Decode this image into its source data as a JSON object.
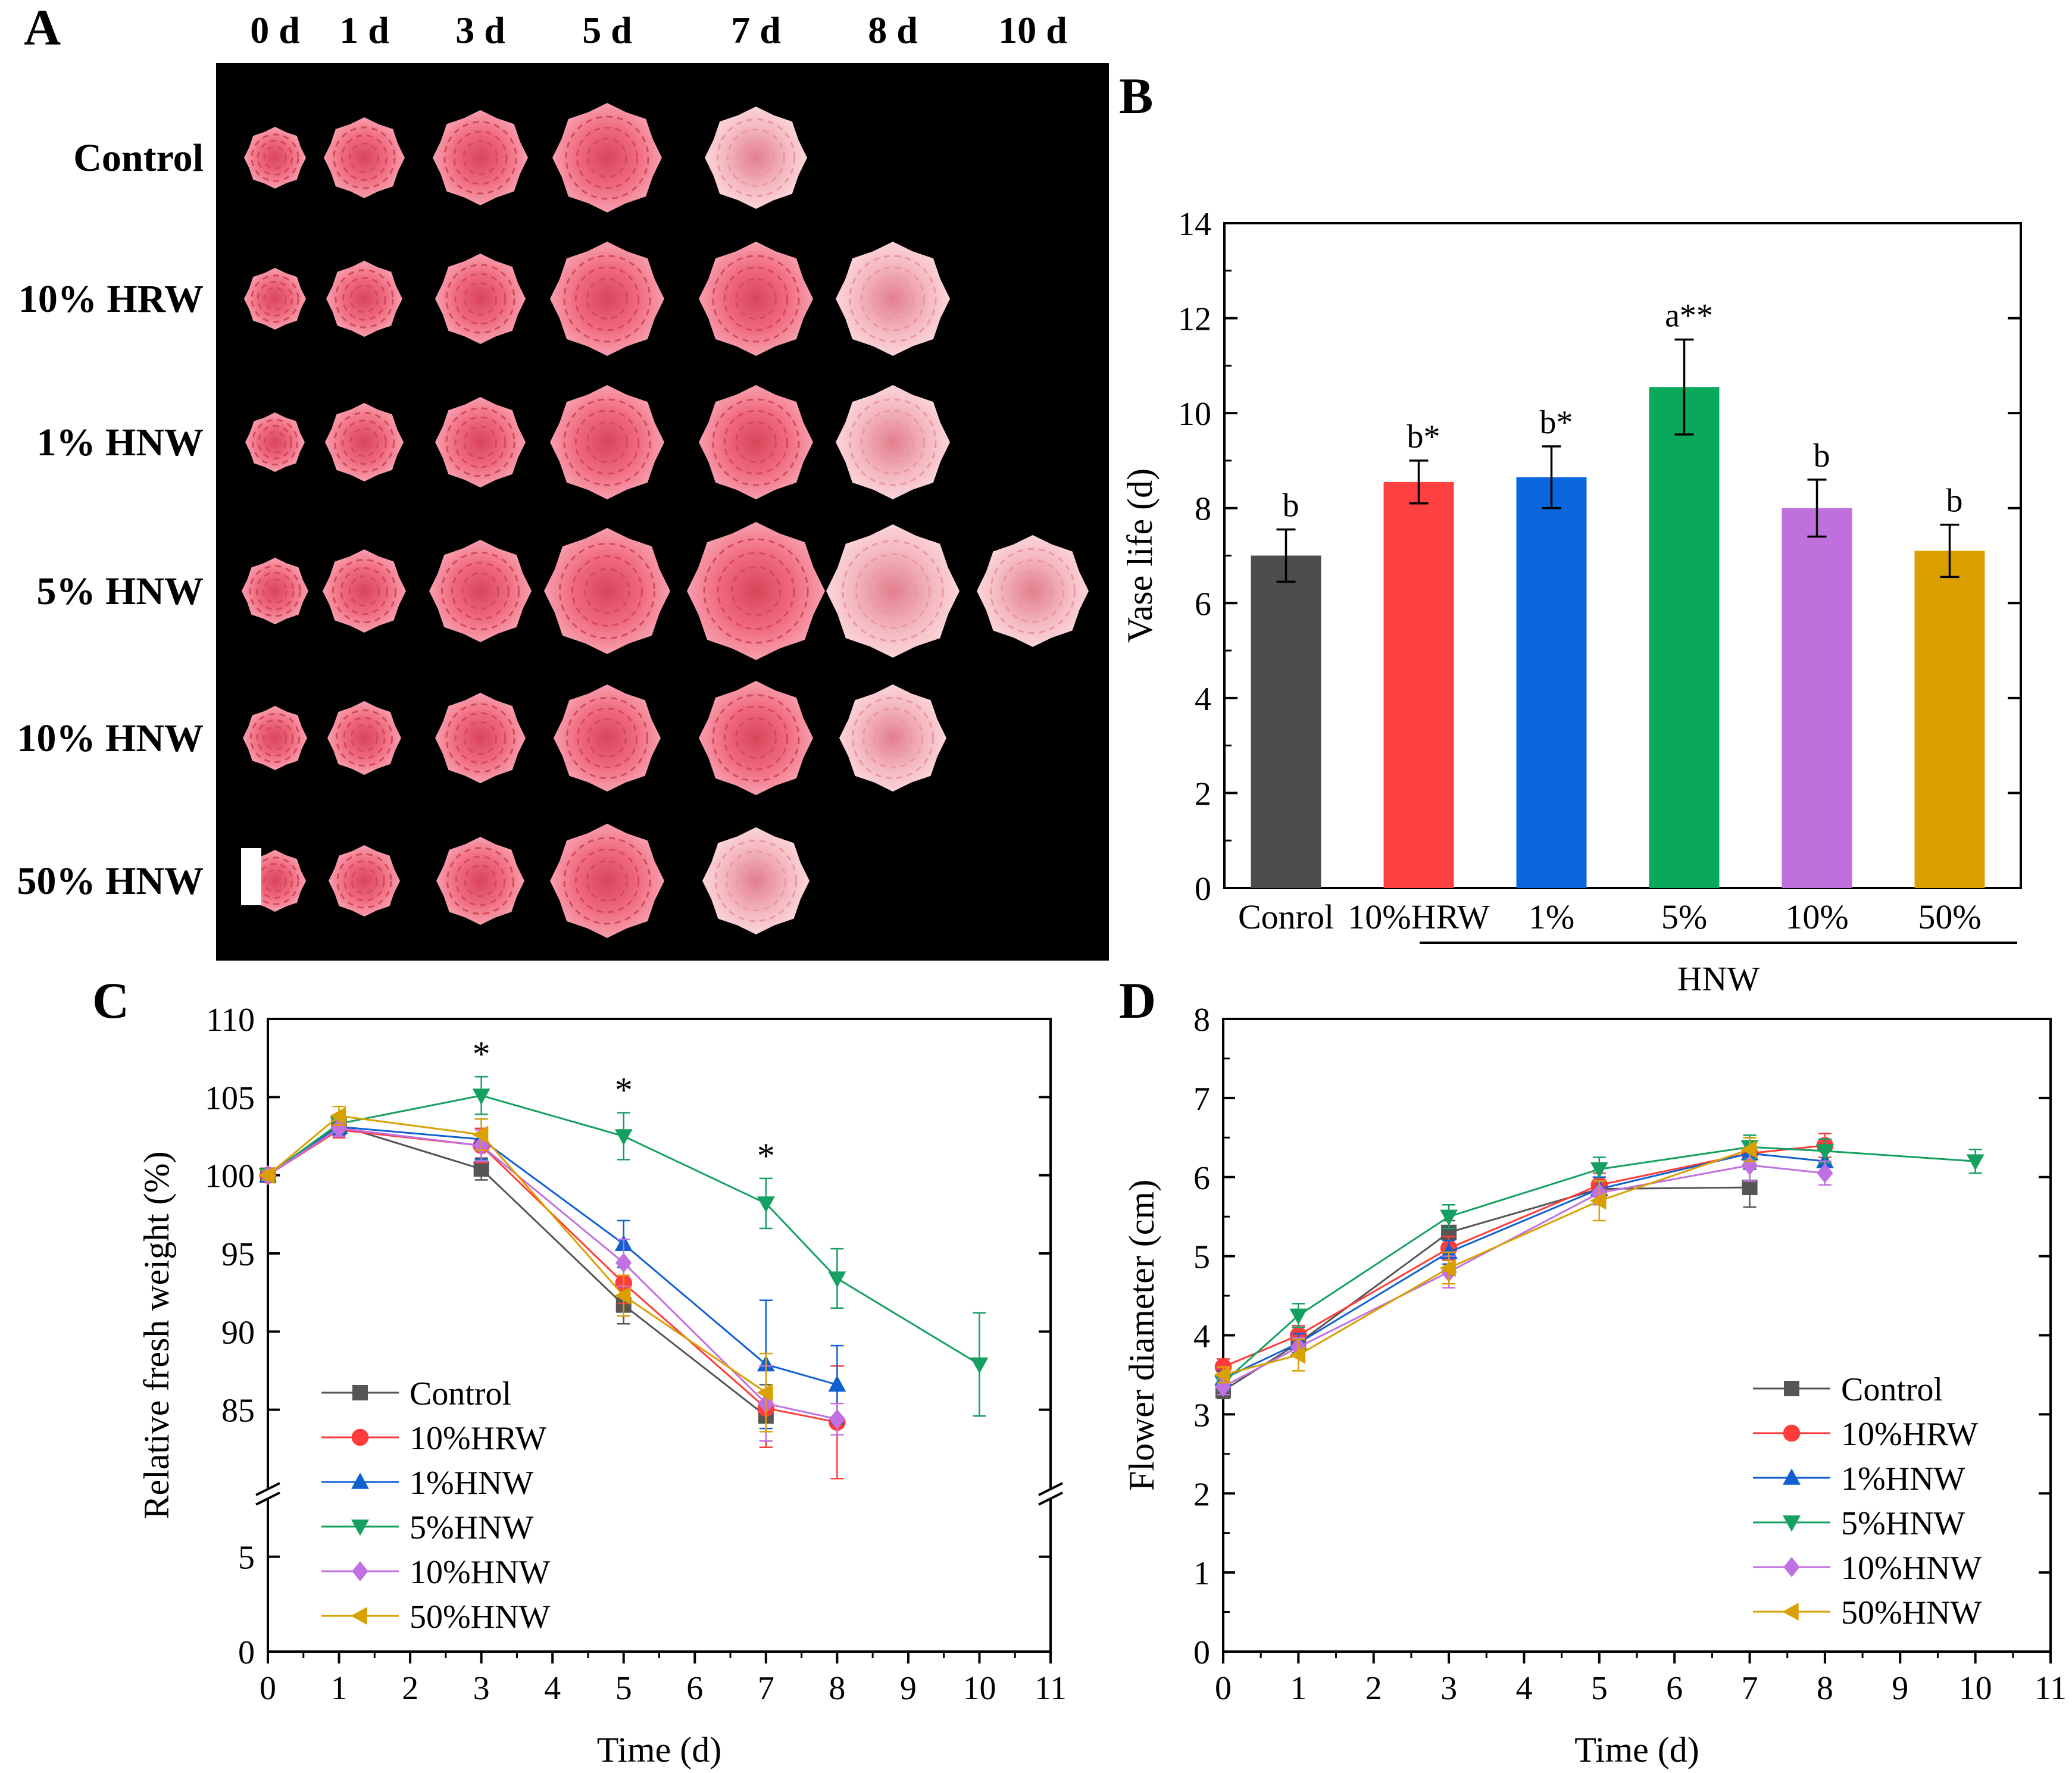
{
  "panels": {
    "a": {
      "label": "A",
      "days": [
        "0 d",
        "1 d",
        "3 d",
        "5 d",
        "7 d",
        "8 d",
        "10 d"
      ],
      "rows": [
        {
          "label": "Control",
          "photos": [
            1,
            1,
            1,
            1,
            1,
            0,
            0
          ]
        },
        {
          "label": "10% HRW",
          "photos": [
            1,
            1,
            1,
            1,
            1,
            1,
            0
          ]
        },
        {
          "label": "1% HNW",
          "photos": [
            1,
            1,
            1,
            1,
            1,
            1,
            0
          ]
        },
        {
          "label": "5% HNW",
          "photos": [
            1,
            1,
            1,
            1,
            1,
            1,
            1
          ]
        },
        {
          "label": "10% HNW",
          "photos": [
            1,
            1,
            1,
            1,
            1,
            1,
            0
          ]
        },
        {
          "label": "50% HNW",
          "photos": [
            1,
            1,
            1,
            1,
            1,
            0,
            0
          ]
        }
      ],
      "colors": {
        "background": "#000000",
        "petal": "#f06a7e",
        "petal_light": "#f4b7bf",
        "scale_bar": "#ffffff"
      }
    }
  },
  "chart_data": [
    {
      "panel": "B",
      "type": "bar",
      "title": "",
      "xlabel": "",
      "ylabel": "Vase life (d)",
      "ylim": [
        0,
        14
      ],
      "yticks": [
        0,
        2,
        4,
        6,
        8,
        10,
        12,
        14
      ],
      "categories": [
        "Conrol",
        "10%HRW",
        "1%",
        "5%",
        "10%",
        "50%"
      ],
      "group_label": "HNW",
      "values": [
        7.0,
        8.55,
        8.65,
        10.55,
        8.0,
        7.1
      ],
      "errors": [
        0.55,
        0.45,
        0.65,
        1.0,
        0.6,
        0.55
      ],
      "annotations": [
        "b",
        "b*",
        "b*",
        "a**",
        "b",
        "b"
      ],
      "colors": [
        "#4d4d4d",
        "#ff4040",
        "#0a66dd",
        "#0aa85a",
        "#c070dd",
        "#d9a000"
      ]
    },
    {
      "panel": "C",
      "type": "line",
      "title": "",
      "xlabel": "Time (d)",
      "ylabel": "Relative fresh weight (%)",
      "xlim": [
        0,
        11
      ],
      "xticks": [
        0,
        1,
        2,
        3,
        4,
        5,
        6,
        7,
        8,
        9,
        10,
        11
      ],
      "y_axis_break": true,
      "ylim_lower": [
        0,
        8
      ],
      "yticks_lower": [
        0,
        5
      ],
      "ylim_upper": [
        80,
        110
      ],
      "yticks_upper": [
        85,
        90,
        95,
        100,
        105,
        110
      ],
      "significance": [
        {
          "x": 3,
          "label": "*"
        },
        {
          "x": 5,
          "label": "*"
        },
        {
          "x": 7,
          "label": "*"
        }
      ],
      "legend_position": "lower-left",
      "series": [
        {
          "name": "Control",
          "marker": "square",
          "color": "#555555",
          "x": [
            0,
            1,
            3,
            5,
            7
          ],
          "y": [
            100,
            103.2,
            100.4,
            91.7,
            84.6
          ],
          "err": [
            0.3,
            0.4,
            0.7,
            1.2,
            2.0
          ]
        },
        {
          "name": "10%HRW",
          "marker": "circle",
          "color": "#ff3b3b",
          "x": [
            0,
            1,
            3,
            5,
            7,
            8
          ],
          "y": [
            100,
            102.9,
            101.9,
            93.1,
            85.1,
            84.2
          ],
          "err": [
            0.3,
            0.5,
            1.1,
            1.3,
            2.5,
            3.6
          ]
        },
        {
          "name": "1%HNW",
          "marker": "triangle-up",
          "color": "#1060d0",
          "x": [
            0,
            1,
            3,
            5,
            7,
            8
          ],
          "y": [
            100,
            103.1,
            102.3,
            95.6,
            87.9,
            86.6
          ],
          "err": [
            0.3,
            0.5,
            1.3,
            1.5,
            4.1,
            2.5
          ]
        },
        {
          "name": "5%HNW",
          "marker": "triangle-down",
          "color": "#14a060",
          "x": [
            0,
            1,
            3,
            5,
            7,
            8,
            10
          ],
          "y": [
            100,
            103.3,
            105.1,
            102.5,
            98.2,
            93.4,
            87.9
          ],
          "err": [
            0.3,
            0.5,
            1.2,
            1.5,
            1.6,
            1.9,
            3.3
          ]
        },
        {
          "name": "10%HNW",
          "marker": "diamond",
          "color": "#c070e0",
          "x": [
            0,
            1,
            3,
            5,
            7,
            8
          ],
          "y": [
            100,
            103.0,
            101.9,
            94.4,
            85.4,
            84.4
          ],
          "err": [
            0.3,
            0.5,
            1.0,
            1.5,
            2.4,
            1.0
          ]
        },
        {
          "name": "50%HNW",
          "marker": "triangle-left",
          "color": "#d9a000",
          "x": [
            0,
            1,
            3,
            5,
            7
          ],
          "y": [
            100,
            103.8,
            102.6,
            92.3,
            86.1
          ],
          "err": [
            0.3,
            0.6,
            1.0,
            1.3,
            2.5
          ]
        }
      ]
    },
    {
      "panel": "D",
      "type": "line",
      "title": "",
      "xlabel": "Time (d)",
      "ylabel": "Flower diameter (cm)",
      "xlim": [
        0,
        11
      ],
      "xticks": [
        0,
        1,
        2,
        3,
        4,
        5,
        6,
        7,
        8,
        9,
        10,
        11
      ],
      "ylim": [
        0,
        8
      ],
      "yticks": [
        0,
        1,
        2,
        3,
        4,
        5,
        6,
        7,
        8
      ],
      "legend_position": "lower-right",
      "series": [
        {
          "name": "Control",
          "marker": "square",
          "color": "#555555",
          "x": [
            0,
            1,
            3,
            5,
            7
          ],
          "y": [
            3.3,
            3.9,
            5.3,
            5.85,
            5.87
          ],
          "err": [
            0.1,
            0.12,
            0.15,
            0.15,
            0.25
          ]
        },
        {
          "name": "10%HRW",
          "marker": "circle",
          "color": "#ff3b3b",
          "x": [
            0,
            1,
            3,
            5,
            7,
            8
          ],
          "y": [
            3.6,
            4.0,
            5.1,
            5.9,
            6.3,
            6.4
          ],
          "err": [
            0.1,
            0.12,
            0.15,
            0.15,
            0.2,
            0.15
          ]
        },
        {
          "name": "1%HNW",
          "marker": "triangle-up",
          "color": "#1060d0",
          "x": [
            0,
            1,
            3,
            5,
            7,
            8
          ],
          "y": [
            3.45,
            3.9,
            5.05,
            5.85,
            6.3,
            6.2
          ],
          "err": [
            0.1,
            0.12,
            0.15,
            0.15,
            0.2,
            0.15
          ]
        },
        {
          "name": "5%HNW",
          "marker": "triangle-down",
          "color": "#14a060",
          "x": [
            0,
            1,
            3,
            5,
            7,
            8,
            10
          ],
          "y": [
            3.4,
            4.25,
            5.5,
            6.1,
            6.38,
            6.33,
            6.2
          ],
          "err": [
            0.1,
            0.15,
            0.15,
            0.15,
            0.15,
            0.15,
            0.15
          ]
        },
        {
          "name": "10%HNW",
          "marker": "diamond",
          "color": "#c070e0",
          "x": [
            0,
            1,
            3,
            5,
            7,
            8
          ],
          "y": [
            3.35,
            3.85,
            4.8,
            5.8,
            6.15,
            6.05
          ],
          "err": [
            0.1,
            0.12,
            0.2,
            0.15,
            0.2,
            0.15
          ]
        },
        {
          "name": "50%HNW",
          "marker": "triangle-left",
          "color": "#d9a000",
          "x": [
            0,
            1,
            3,
            5,
            7
          ],
          "y": [
            3.5,
            3.75,
            4.85,
            5.7,
            6.35
          ],
          "err": [
            0.1,
            0.2,
            0.2,
            0.25,
            0.15
          ]
        }
      ]
    }
  ]
}
